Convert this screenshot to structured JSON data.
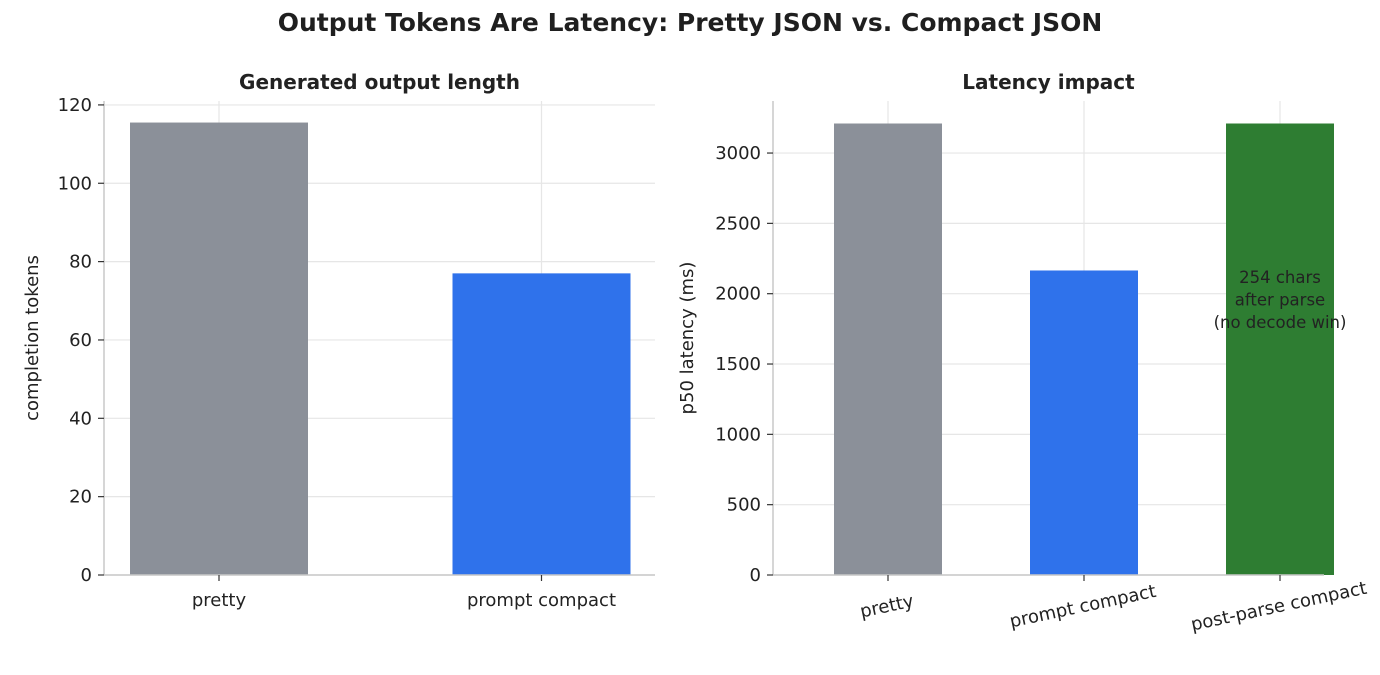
{
  "figure": {
    "title": "Output Tokens Are Latency: Pretty JSON vs. Compact JSON"
  },
  "colors": {
    "pretty": "#8b9099",
    "compact": "#2f72eb",
    "post_parse": "#2e7d32",
    "grid": "#e6e6e6",
    "axis": "#c8c8c8"
  },
  "chart_data": [
    {
      "type": "bar",
      "title": "Generated output length",
      "xlabel": "",
      "ylabel": "completion tokens",
      "categories": [
        "pretty",
        "prompt compact"
      ],
      "values": [
        115.5,
        77
      ],
      "ylim": [
        0,
        121
      ],
      "yticks": [
        0,
        20,
        40,
        60,
        80,
        100,
        120
      ],
      "grid": true,
      "annotations": []
    },
    {
      "type": "bar",
      "title": "Latency impact",
      "xlabel": "",
      "ylabel": "p50 latency (ms)",
      "categories": [
        "pretty",
        "prompt compact",
        "post-parse compact"
      ],
      "values": [
        3210,
        2165,
        3210
      ],
      "ylim": [
        0,
        3370
      ],
      "yticks": [
        0,
        500,
        1000,
        1500,
        2000,
        2500,
        3000
      ],
      "grid": true,
      "annotations": [
        {
          "category": "post-parse compact",
          "lines": [
            "254 chars",
            "after parse",
            "(no decode win)"
          ]
        }
      ]
    }
  ]
}
